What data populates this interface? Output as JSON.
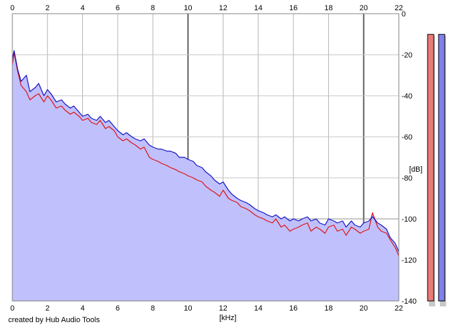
{
  "footer": {
    "credit": "created by Hub Audio Tools"
  },
  "chart_data": {
    "type": "area",
    "title": "",
    "xlabel": "[kHz]",
    "ylabel": "[dB]",
    "xlim": [
      0,
      22
    ],
    "ylim": [
      -140,
      0
    ],
    "x_ticks": [
      0,
      2,
      4,
      6,
      8,
      10,
      12,
      14,
      16,
      18,
      20,
      22
    ],
    "x_tick_labels": [
      "0",
      "2",
      "4",
      "6",
      "8",
      "10",
      "12",
      "14",
      "16",
      "18",
      "20",
      "22"
    ],
    "y_ticks": [
      0,
      -20,
      -40,
      -60,
      -80,
      -100,
      -120,
      -140
    ],
    "y_tick_labels": [
      "0",
      "-20",
      "-40",
      "-60",
      "-80",
      "-100",
      "-120",
      "-140"
    ],
    "x_ticks_top": true,
    "grid": true,
    "x": [
      0,
      0.1,
      0.3,
      0.5,
      0.8,
      1,
      1.3,
      1.5,
      1.8,
      2,
      2.2,
      2.5,
      2.8,
      3,
      3.3,
      3.5,
      3.8,
      4,
      4.3,
      4.5,
      4.8,
      5,
      5.3,
      5.5,
      5.8,
      6,
      6.3,
      6.5,
      6.8,
      7,
      7.3,
      7.5,
      7.8,
      8,
      8.3,
      8.5,
      8.8,
      9,
      9.3,
      9.5,
      9.8,
      10,
      10.3,
      10.5,
      10.8,
      11,
      11.3,
      11.5,
      11.8,
      12,
      12.3,
      12.5,
      12.8,
      13,
      13.3,
      13.5,
      13.8,
      14,
      14.3,
      14.5,
      14.8,
      15,
      15.3,
      15.5,
      15.8,
      16,
      16.3,
      16.5,
      16.8,
      17,
      17.3,
      17.5,
      17.8,
      18,
      18.3,
      18.5,
      18.8,
      19,
      19.3,
      19.5,
      19.8,
      20,
      20.3,
      20.5,
      20.8,
      21,
      21.3,
      21.5,
      21.8,
      22
    ],
    "series": [
      {
        "color": "#e01010",
        "values": [
          -25,
          -19,
          -28,
          -35,
          -38,
          -42,
          -40,
          -39,
          -43,
          -40,
          -42,
          -46,
          -45,
          -47,
          -49,
          -48,
          -50,
          -52,
          -51,
          -53,
          -54,
          -52,
          -56,
          -55,
          -57,
          -60,
          -62,
          -61,
          -63,
          -64,
          -66,
          -65,
          -70,
          -71,
          -72,
          -73,
          -74,
          -75,
          -76,
          -77,
          -78,
          -79,
          -80,
          -81,
          -82,
          -84,
          -86,
          -87,
          -89,
          -86,
          -90,
          -91,
          -92,
          -94,
          -95,
          -96,
          -98,
          -99,
          -100,
          -101,
          -102,
          -100,
          -104,
          -103,
          -106,
          -105,
          -104,
          -103,
          -102,
          -106,
          -104,
          -105,
          -107,
          -104,
          -103,
          -106,
          -105,
          -108,
          -104,
          -105,
          -107,
          -106,
          -105,
          -97,
          -104,
          -106,
          -107,
          -110,
          -114,
          -118
        ]
      },
      {
        "color": "#1010c0",
        "values": [
          -22,
          -18,
          -27,
          -33,
          -30,
          -38,
          -36,
          -34,
          -40,
          -37,
          -39,
          -43,
          -42,
          -44,
          -46,
          -45,
          -48,
          -50,
          -49,
          -51,
          -52,
          -50,
          -53,
          -52,
          -55,
          -57,
          -59,
          -58,
          -60,
          -61,
          -62,
          -61,
          -64,
          -65,
          -66,
          -66,
          -67,
          -67,
          -68,
          -70,
          -70,
          -71,
          -72,
          -74,
          -75,
          -77,
          -79,
          -81,
          -83,
          -82,
          -86,
          -88,
          -90,
          -91,
          -92,
          -93,
          -95,
          -96,
          -97,
          -98,
          -99,
          -98,
          -100,
          -99,
          -101,
          -100,
          -101,
          -100,
          -99,
          -101,
          -100,
          -102,
          -103,
          -100,
          -101,
          -102,
          -101,
          -104,
          -101,
          -103,
          -104,
          -102,
          -101,
          -99,
          -102,
          -103,
          -105,
          -109,
          -112,
          -116
        ]
      }
    ],
    "fill_color": "#c0c0fc",
    "meters": [
      {
        "color": "#e87a7a",
        "level": 0.96
      },
      {
        "color": "#8080ec",
        "level": 0.96
      }
    ]
  }
}
